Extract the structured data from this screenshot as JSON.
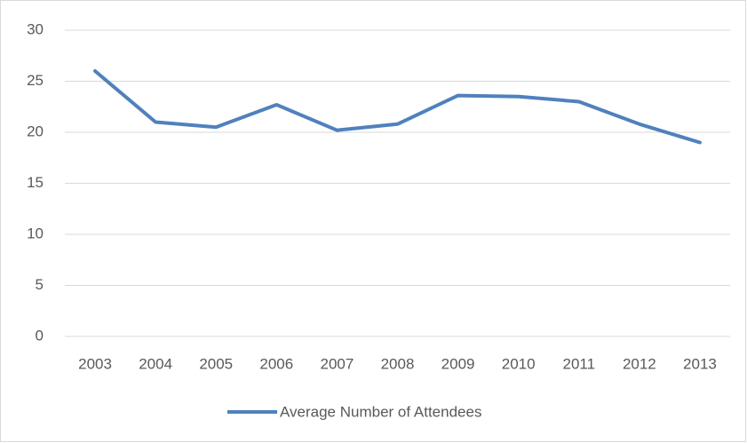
{
  "chart_data": {
    "type": "line",
    "categories": [
      "2003",
      "2004",
      "2005",
      "2006",
      "2007",
      "2008",
      "2009",
      "2010",
      "2011",
      "2012",
      "2013"
    ],
    "series": [
      {
        "name": "Average Number of Attendees",
        "color": "#4f81bd",
        "values": [
          26,
          21,
          20.5,
          22.7,
          20.2,
          20.8,
          23.6,
          23.5,
          23,
          20.8,
          19
        ]
      }
    ],
    "ylim": [
      0,
      30
    ],
    "yticks": [
      0,
      5,
      10,
      15,
      20,
      25,
      30
    ],
    "grid": true,
    "legend": "bottom"
  }
}
